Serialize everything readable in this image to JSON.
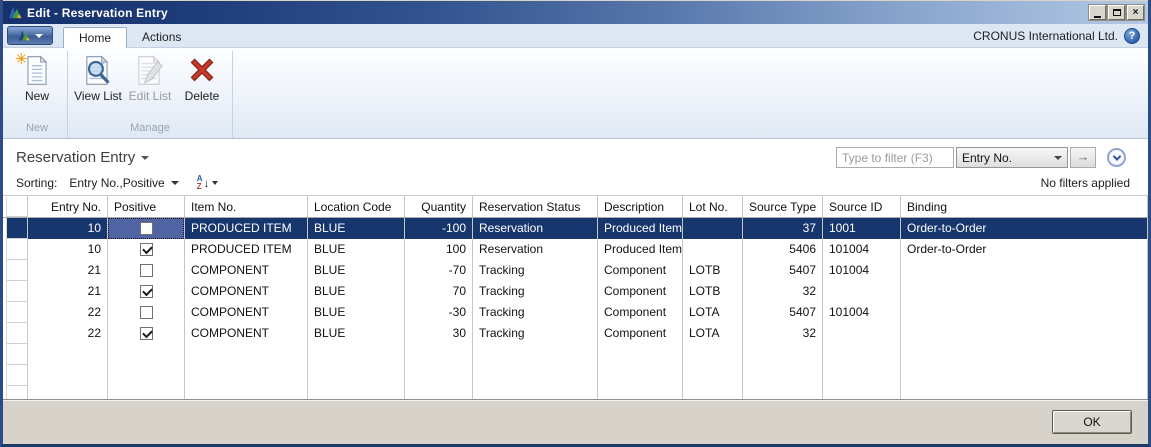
{
  "window": {
    "title": "Edit - Reservation Entry",
    "company": "CRONUS International Ltd."
  },
  "tabs": [
    {
      "label": "Home",
      "active": true
    },
    {
      "label": "Actions",
      "active": false
    }
  ],
  "ribbon": {
    "groups": [
      {
        "label": "New",
        "buttons": [
          {
            "label": "New",
            "icon": "new-document-icon",
            "enabled": true
          }
        ]
      },
      {
        "label": "Manage",
        "buttons": [
          {
            "label": "View List",
            "icon": "view-list-icon",
            "enabled": true
          },
          {
            "label": "Edit List",
            "icon": "edit-list-icon",
            "enabled": false
          },
          {
            "label": "Delete",
            "icon": "delete-icon",
            "enabled": true
          }
        ]
      }
    ]
  },
  "page": {
    "title": "Reservation Entry"
  },
  "filter": {
    "placeholder": "Type to filter (F3)",
    "field": "Entry No.",
    "status": "No filters applied"
  },
  "sorting": {
    "label": "Sorting:",
    "value": "Entry No.,Positive"
  },
  "table": {
    "columns": [
      {
        "key": "entry_no",
        "label": "Entry No."
      },
      {
        "key": "positive",
        "label": "Positive"
      },
      {
        "key": "item_no",
        "label": "Item No."
      },
      {
        "key": "location_code",
        "label": "Location Code"
      },
      {
        "key": "quantity",
        "label": "Quantity"
      },
      {
        "key": "reservation_status",
        "label": "Reservation Status"
      },
      {
        "key": "description",
        "label": "Description"
      },
      {
        "key": "lot_no",
        "label": "Lot No."
      },
      {
        "key": "source_type",
        "label": "Source Type"
      },
      {
        "key": "source_id",
        "label": "Source ID"
      },
      {
        "key": "binding",
        "label": "Binding"
      }
    ],
    "rows": [
      {
        "selected": true,
        "entry_no": "10",
        "positive": false,
        "item_no": "PRODUCED ITEM",
        "location_code": "BLUE",
        "quantity": "-100",
        "reservation_status": "Reservation",
        "description": "Produced Item",
        "lot_no": "",
        "source_type": "37",
        "source_id": "1001",
        "binding": "Order-to-Order"
      },
      {
        "selected": false,
        "entry_no": "10",
        "positive": true,
        "item_no": "PRODUCED ITEM",
        "location_code": "BLUE",
        "quantity": "100",
        "reservation_status": "Reservation",
        "description": "Produced Item",
        "lot_no": "",
        "source_type": "5406",
        "source_id": "101004",
        "binding": "Order-to-Order"
      },
      {
        "selected": false,
        "entry_no": "21",
        "positive": false,
        "item_no": "COMPONENT",
        "location_code": "BLUE",
        "quantity": "-70",
        "reservation_status": "Tracking",
        "description": "Component",
        "lot_no": "LOTB",
        "source_type": "5407",
        "source_id": "101004",
        "binding": ""
      },
      {
        "selected": false,
        "entry_no": "21",
        "positive": true,
        "item_no": "COMPONENT",
        "location_code": "BLUE",
        "quantity": "70",
        "reservation_status": "Tracking",
        "description": "Component",
        "lot_no": "LOTB",
        "source_type": "32",
        "source_id": "",
        "binding": ""
      },
      {
        "selected": false,
        "entry_no": "22",
        "positive": false,
        "item_no": "COMPONENT",
        "location_code": "BLUE",
        "quantity": "-30",
        "reservation_status": "Tracking",
        "description": "Component",
        "lot_no": "LOTA",
        "source_type": "5407",
        "source_id": "101004",
        "binding": ""
      },
      {
        "selected": false,
        "entry_no": "22",
        "positive": true,
        "item_no": "COMPONENT",
        "location_code": "BLUE",
        "quantity": "30",
        "reservation_status": "Tracking",
        "description": "Component",
        "lot_no": "LOTA",
        "source_type": "32",
        "source_id": "",
        "binding": ""
      }
    ]
  },
  "footer": {
    "ok_label": "OK"
  },
  "colors": {
    "selected_row": "#17366E",
    "focus_cell": "#5063A3",
    "window_border": "#2B4C87",
    "ribbon_bottom": "#B6C4D6"
  }
}
